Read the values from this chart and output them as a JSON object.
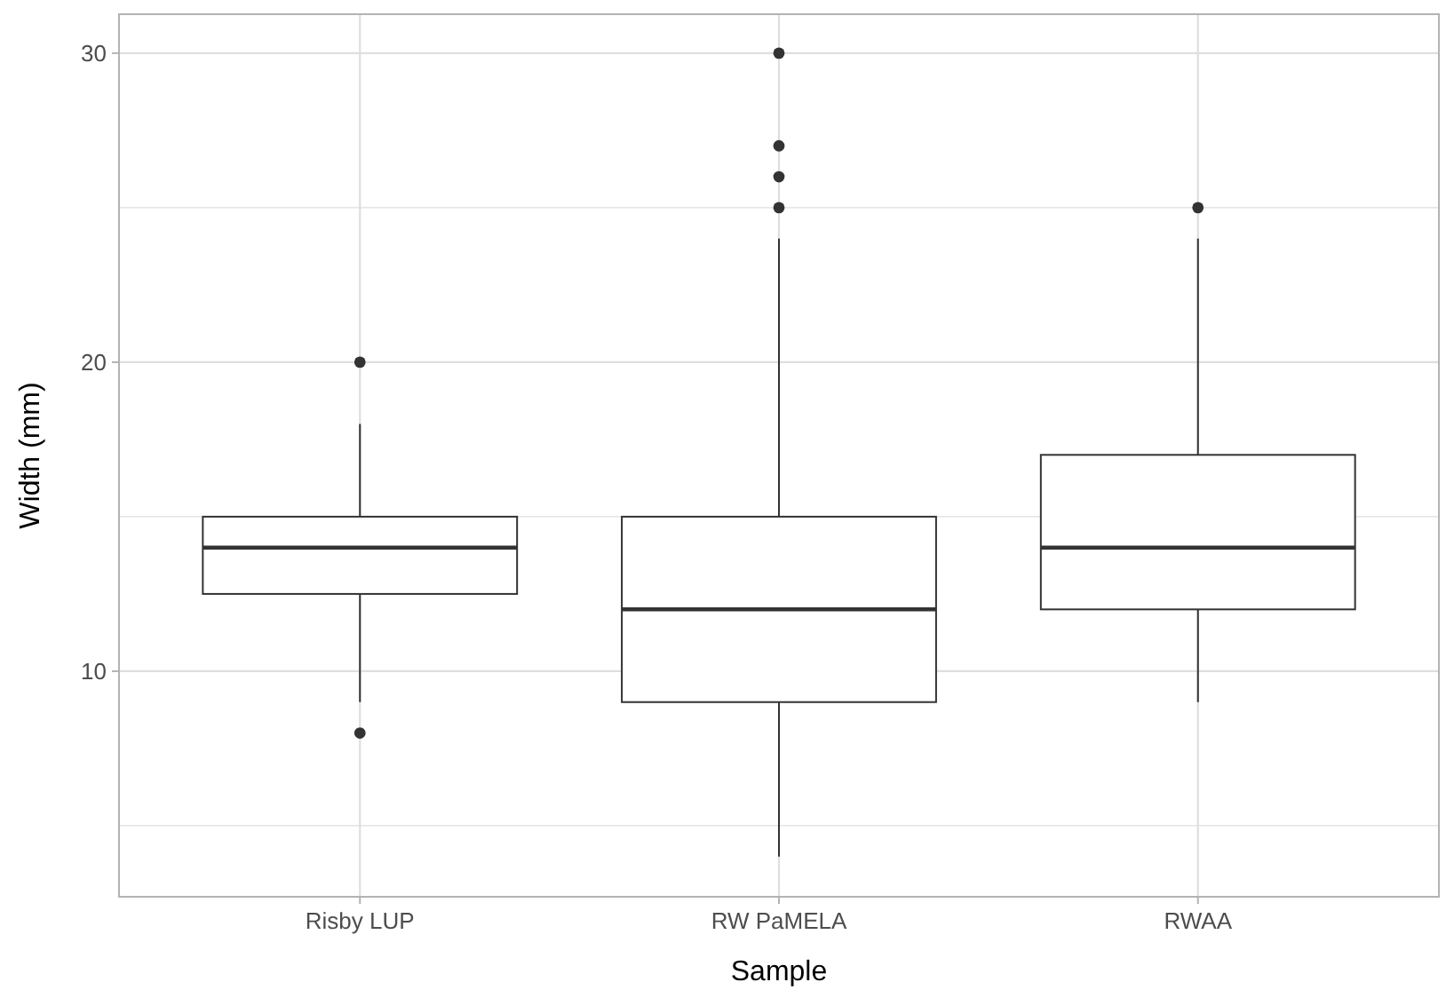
{
  "chart_data": {
    "type": "box",
    "xlabel": "Sample",
    "ylabel": "Width (mm)",
    "categories": [
      "Risby LUP",
      "RW PaMELA",
      "RWAA"
    ],
    "boxes": [
      {
        "low": 9,
        "q1": 12.5,
        "median": 14,
        "q3": 15,
        "high": 18,
        "outliers": [
          20,
          8
        ]
      },
      {
        "low": 4,
        "q1": 9,
        "median": 12,
        "q3": 15,
        "high": 24,
        "outliers": [
          25,
          26,
          27,
          30
        ]
      },
      {
        "low": 9,
        "q1": 12,
        "median": 14,
        "q3": 17,
        "high": 24,
        "outliers": [
          25
        ]
      }
    ],
    "ylim": [
      2.7,
      31.26
    ],
    "yticks": [
      {
        "value": 5,
        "label": null
      },
      10,
      {
        "value": 15,
        "label": null
      },
      20,
      {
        "value": 25,
        "label": null
      },
      30
    ],
    "grid": true,
    "color": "#333333"
  }
}
